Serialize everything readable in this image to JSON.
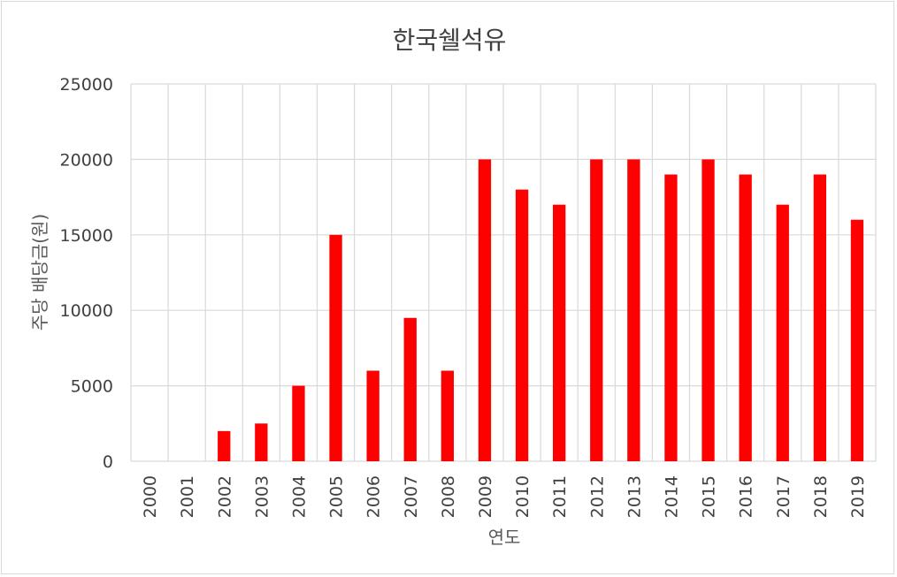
{
  "chart_data": {
    "type": "bar",
    "title": "한국쉘석유",
    "xlabel": "연도",
    "ylabel": "주당 배당금(원)",
    "categories": [
      "2000",
      "2001",
      "2002",
      "2003",
      "2004",
      "2005",
      "2006",
      "2007",
      "2008",
      "2009",
      "2010",
      "2011",
      "2012",
      "2013",
      "2014",
      "2015",
      "2016",
      "2017",
      "2018",
      "2019"
    ],
    "values": [
      0,
      0,
      2000,
      2500,
      5000,
      15000,
      6000,
      9500,
      6000,
      20000,
      18000,
      17000,
      20000,
      20000,
      19000,
      20000,
      19000,
      17000,
      19000,
      16000
    ],
    "ylim": [
      0,
      25000
    ],
    "yticks": [
      "0",
      "5000",
      "10000",
      "15000",
      "20000",
      "25000"
    ],
    "grid": true,
    "bar_color": "#ff0000",
    "grid_color": "#d9d9d9"
  }
}
